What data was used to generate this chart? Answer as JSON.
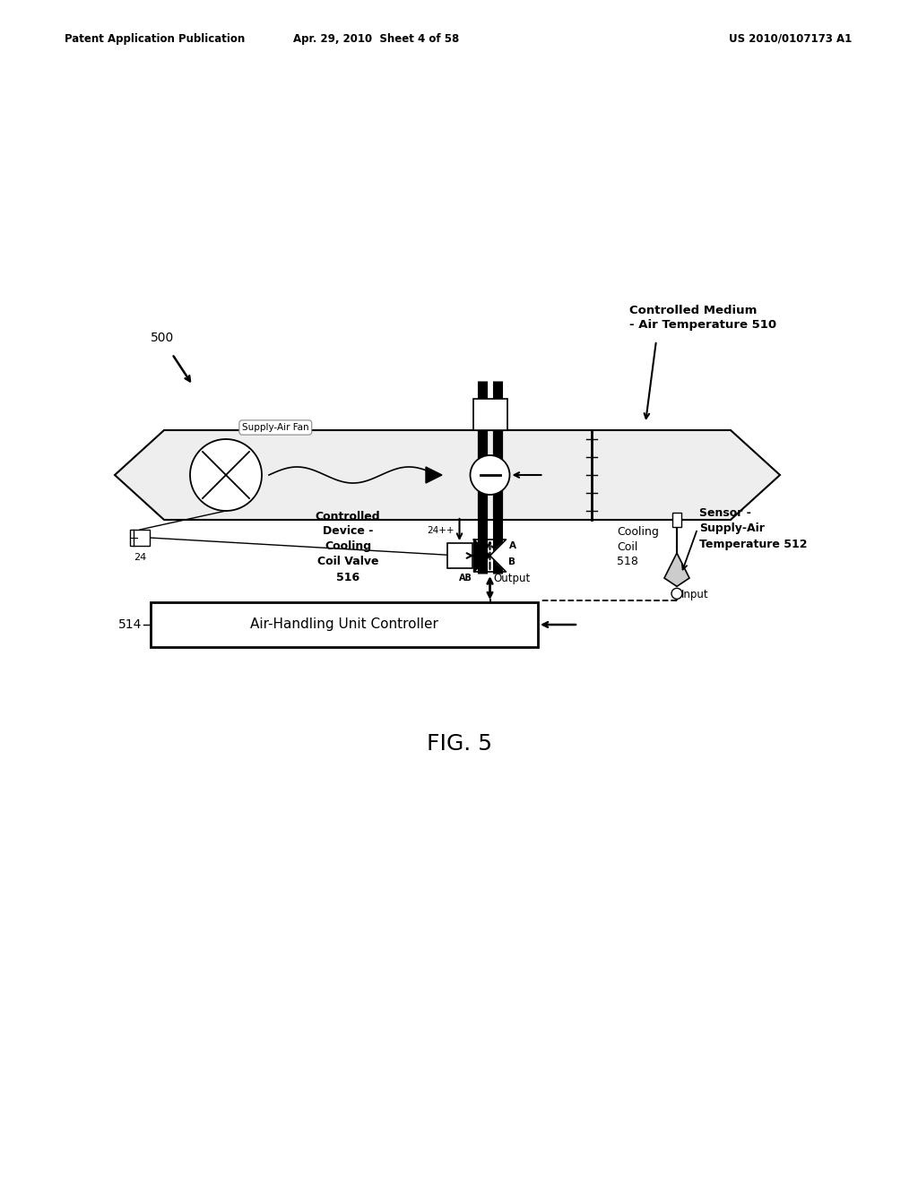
{
  "bg_color": "#ffffff",
  "header_left": "Patent Application Publication",
  "header_center": "Apr. 29, 2010  Sheet 4 of 58",
  "header_right": "US 2010/0107173 A1",
  "fig_label": "FIG. 5",
  "label_500": "500",
  "label_514": "514",
  "label_24": "24",
  "label_510": "Controlled Medium\n- Air Temperature 510",
  "label_512": "Sensor -\nSupply-Air\nTemperature 512",
  "label_516": "Controlled\nDevice -\nCooling\nCoil Valve\n516",
  "label_518": "Cooling\nCoil\n518",
  "label_fan": "Supply-Air Fan",
  "label_controller": "Air-Handling Unit Controller",
  "label_output": "Output",
  "label_input": "Input",
  "label_24plus": "24++"
}
